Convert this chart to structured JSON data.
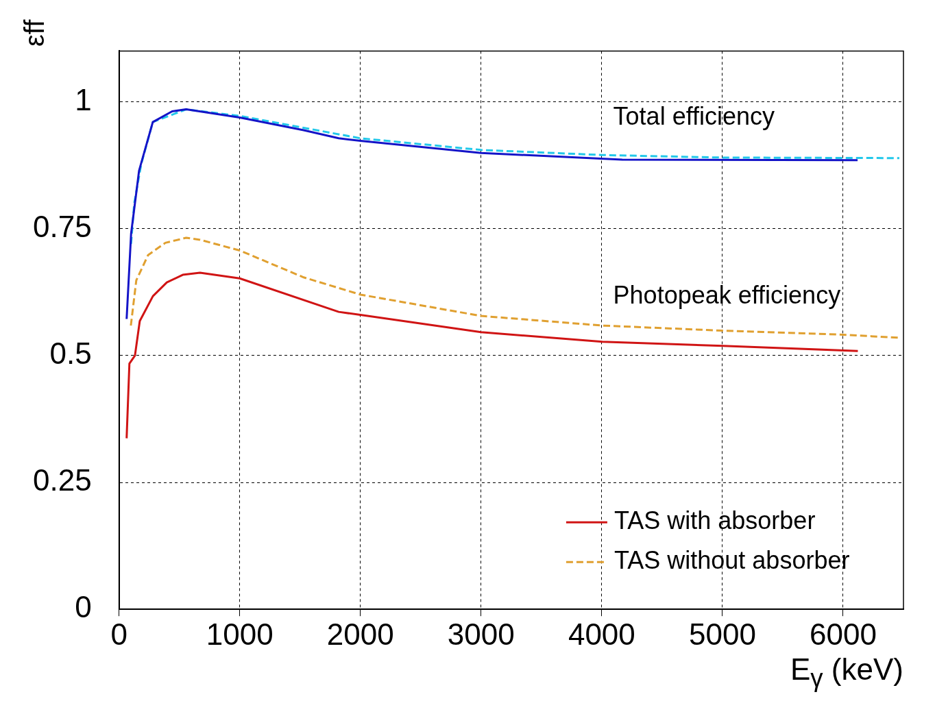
{
  "chart_data": {
    "type": "line",
    "xlabel": "E$_{γ}$ (keV)",
    "ylabel": "εff",
    "xlim": [
      0,
      6500
    ],
    "ylim": [
      0,
      1.1
    ],
    "xticks": [
      0,
      1000,
      2000,
      3000,
      4000,
      5000,
      6000
    ],
    "yticks": [
      0,
      0.25,
      0.5,
      0.75,
      1
    ],
    "grid": true,
    "legend": "bottom right",
    "marker": "none",
    "annotations": [
      "Total efficiency",
      "Photopeak efficiency"
    ],
    "series": [
      {
        "color": "#1414c8",
        "line_style": "solid",
        "x": [
          63,
          100,
          166,
          280,
          440,
          556,
          1000,
          1530,
          1820,
          2000,
          3000,
          4170,
          6120
        ],
        "values": [
          0.572,
          0.74,
          0.864,
          0.96,
          0.981,
          0.985,
          0.969,
          0.944,
          0.928,
          0.923,
          0.899,
          0.886,
          0.885
        ]
      },
      {
        "color": "#22c8ea",
        "line_style": "dashed",
        "x": [
          100,
          126,
          184,
          280,
          556,
          1000,
          2000,
          3000,
          4000,
          5000,
          6466
        ],
        "values": [
          0.72,
          0.8,
          0.877,
          0.96,
          0.985,
          0.972,
          0.928,
          0.905,
          0.895,
          0.89,
          0.889
        ]
      },
      {
        "name": "TAS with absorber",
        "color": "#d01414",
        "line_style": "solid",
        "x": [
          63,
          86,
          132,
          172,
          281,
          396,
          528,
          671,
          1000,
          1820,
          2000,
          3000,
          4005,
          5003,
          6122
        ],
        "values": [
          0.337,
          0.484,
          0.5,
          0.568,
          0.617,
          0.644,
          0.659,
          0.663,
          0.652,
          0.586,
          0.58,
          0.546,
          0.527,
          0.519,
          0.509
        ]
      },
      {
        "name": "TAS without absorber",
        "color": "#e0a030",
        "line_style": "dashed",
        "x": [
          98,
          143,
          241,
          384,
          556,
          671,
          1000,
          1530,
          2000,
          3000,
          4005,
          5003,
          6000,
          6466
        ],
        "values": [
          0.559,
          0.648,
          0.698,
          0.722,
          0.732,
          0.728,
          0.707,
          0.654,
          0.62,
          0.578,
          0.559,
          0.549,
          0.541,
          0.535
        ]
      }
    ]
  }
}
